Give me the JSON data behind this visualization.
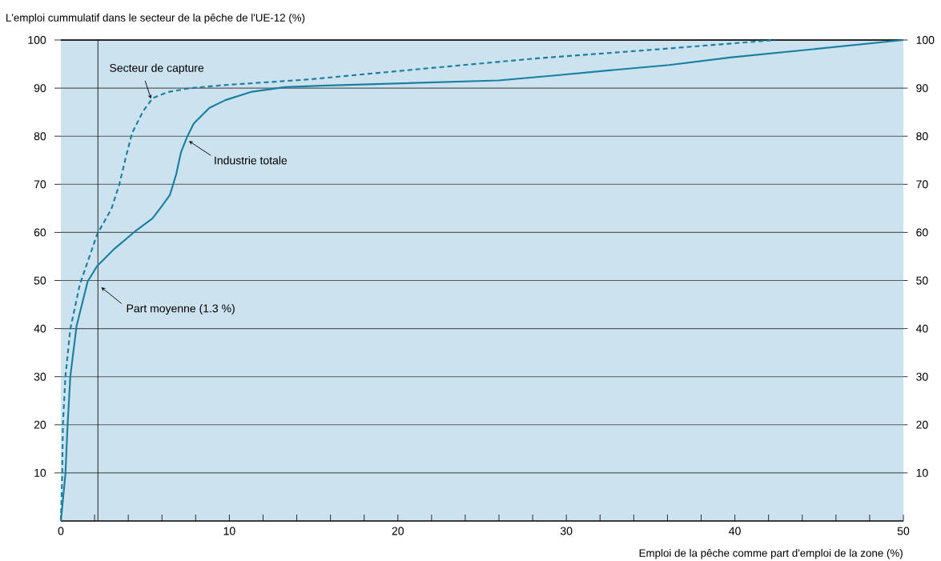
{
  "chart_data": {
    "type": "line",
    "ylabel": "L'emploi cummulatif dans le secteur de la pêche de l'UE-12 (%)",
    "xlabel": "Emploi de la pêche comme part d'emploi de la zone (%)",
    "xlim": [
      0,
      50
    ],
    "ylim": [
      0,
      100
    ],
    "y2lim": [
      0,
      100
    ],
    "xticks": [
      0,
      {
        "value": 2,
        "label": null
      },
      {
        "value": 4,
        "label": null
      },
      {
        "value": 6,
        "label": null
      },
      {
        "value": 8,
        "label": null
      },
      10,
      {
        "value": 12,
        "label": null
      },
      {
        "value": 14,
        "label": null
      },
      {
        "value": 16,
        "label": null
      },
      {
        "value": 18,
        "label": null
      },
      20,
      {
        "value": 22,
        "label": null
      },
      {
        "value": 24,
        "label": null
      },
      {
        "value": 26,
        "label": null
      },
      {
        "value": 28,
        "label": null
      },
      30,
      {
        "value": 32,
        "label": null
      },
      {
        "value": 34,
        "label": null
      },
      {
        "value": 36,
        "label": null
      },
      {
        "value": 38,
        "label": null
      },
      40,
      {
        "value": 42,
        "label": null
      },
      {
        "value": 44,
        "label": null
      },
      {
        "value": 46,
        "label": null
      },
      {
        "value": 48,
        "label": null
      },
      50
    ],
    "yticks": [
      10,
      20,
      30,
      40,
      50,
      60,
      70,
      80,
      90,
      100
    ],
    "y2ticks": [
      10,
      20,
      30,
      40,
      50,
      60,
      70,
      80,
      90,
      100
    ],
    "grid": "y",
    "ref_lines": [
      {
        "axis": "x",
        "value": 2.2,
        "label": "Part moyenne (1.3 %)",
        "color": "#1a1a1a"
      }
    ],
    "series": [
      {
        "name": "Secteur de capture",
        "color": "#1a7fa0",
        "line_style": "dashed",
        "x": [
          0,
          0.08,
          0.12,
          0.27,
          0.56,
          1.12,
          2.15,
          3.0,
          3.47,
          3.84,
          4.22,
          4.88,
          5.44,
          6.37,
          7.7,
          9.57,
          14.7,
          21.4,
          28.3,
          35.2,
          42.4
        ],
        "values": [
          0,
          9.7,
          20,
          30,
          39.9,
          49.1,
          59.6,
          64.9,
          70,
          75.4,
          80.6,
          85.2,
          87.9,
          89.2,
          90,
          90.6,
          91.8,
          94.0,
          96.2,
          98.0,
          100
        ]
      },
      {
        "name": "Industrie totale",
        "color": "#1a7fa0",
        "line_style": "solid",
        "x": [
          0,
          0.27,
          0.4,
          0.56,
          0.93,
          1.59,
          2.15,
          3.18,
          4.4,
          5.44,
          6.0,
          6.47,
          6.84,
          7.13,
          7.51,
          7.88,
          8.82,
          9.76,
          11.27,
          13.3,
          15.4,
          25.98,
          29.2,
          32.9,
          36.1,
          39.8,
          44.4,
          50
        ],
        "values": [
          0,
          9.7,
          20,
          30,
          40.5,
          49.8,
          53,
          56.6,
          60.2,
          62.9,
          65.5,
          67.8,
          72,
          76.7,
          80,
          82.6,
          85.9,
          87.5,
          89.2,
          90.2,
          90.5,
          91.6,
          92.6,
          93.8,
          94.8,
          96.4,
          98.0,
          100
        ]
      }
    ]
  }
}
